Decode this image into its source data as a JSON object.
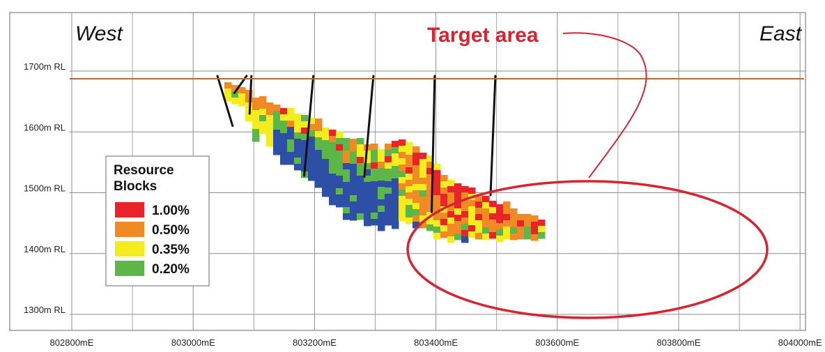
{
  "header": {
    "west": "West",
    "east": "East",
    "target_label": "Target area"
  },
  "axes": {
    "x_ticks": [
      "802800mE",
      "803000mE",
      "803200mE",
      "803400mE",
      "803600mE",
      "803800mE",
      "804000mE"
    ],
    "y_ticks": [
      "1700m RL",
      "1600m RL",
      "1500m RL",
      "1400m RL",
      "1300m RL"
    ]
  },
  "legend": {
    "title_line1": "Resource",
    "title_line2": "Blocks",
    "items": [
      {
        "label": "1.00%",
        "color": "#e8232a"
      },
      {
        "label": "0.50%",
        "color": "#f08a25"
      },
      {
        "label": "0.35%",
        "color": "#f4ec1e"
      },
      {
        "label": "0.20%",
        "color": "#5cb748"
      }
    ]
  },
  "colors": {
    "grade_1_00": "#e8232a",
    "grade_0_50": "#f08a25",
    "grade_0_35": "#f4ec1e",
    "grade_0_20": "#5cb748",
    "low_grade": "#2e4fa6",
    "target": "#d9232e",
    "surface": "#b06a3c",
    "drillhole": "#111111"
  },
  "drillholes": [
    {
      "collar": [
        803040,
        1692
      ],
      "toe": [
        803065,
        1610
      ]
    },
    {
      "collar": [
        803088,
        1692
      ],
      "toe": [
        803068,
        1664
      ]
    },
    {
      "collar": [
        803096,
        1692
      ],
      "toe": [
        803093,
        1630
      ]
    },
    {
      "collar": [
        803198,
        1692
      ],
      "toe": [
        803183,
        1528
      ]
    },
    {
      "collar": [
        803297,
        1692
      ],
      "toe": [
        803282,
        1526
      ]
    },
    {
      "collar": [
        803398,
        1692
      ],
      "toe": [
        803393,
        1468
      ]
    },
    {
      "collar": [
        803498,
        1692
      ],
      "toe": [
        803490,
        1496
      ]
    }
  ]
}
